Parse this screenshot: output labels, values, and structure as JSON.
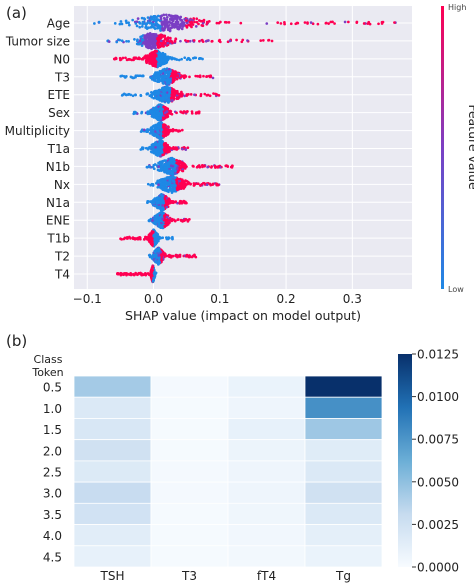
{
  "chart_data": [
    {
      "panel_label": "(a)",
      "type": "scatter",
      "subtype": "shap-beeswarm",
      "xlabel": "SHAP value (impact on model output)",
      "xlim": [
        -0.12,
        0.39
      ],
      "xticks": [
        -0.1,
        0.0,
        0.1,
        0.2,
        0.3
      ],
      "xtick_labels": [
        "−0.1",
        "0.0",
        "0.1",
        "0.2",
        "0.3"
      ],
      "grid": true,
      "colorbar": {
        "label": "Feature value",
        "high": "High",
        "low": "Low",
        "colors": {
          "low": "#1e88e5",
          "mid": "#7b3fc4",
          "high": "#ff0052"
        }
      },
      "features": [
        {
          "name": "Age",
          "range": [
            -0.09,
            0.37
          ],
          "core": [
            -0.06,
            0.1
          ]
        },
        {
          "name": "Tumor size",
          "range": [
            -0.07,
            0.18
          ],
          "core": [
            -0.04,
            0.04
          ]
        },
        {
          "name": "N0",
          "range": [
            -0.06,
            0.075
          ],
          "core": [
            -0.02,
            0.03
          ]
        },
        {
          "name": "T3",
          "range": [
            -0.05,
            0.09
          ],
          "core": [
            -0.01,
            0.05
          ]
        },
        {
          "name": "ETE",
          "range": [
            -0.05,
            0.1
          ],
          "core": [
            -0.01,
            0.05
          ]
        },
        {
          "name": "Sex",
          "range": [
            -0.03,
            0.07
          ],
          "core": [
            -0.01,
            0.03
          ]
        },
        {
          "name": "Multiplicity",
          "range": [
            -0.02,
            0.045
          ],
          "core": [
            -0.01,
            0.03
          ]
        },
        {
          "name": "T1a",
          "range": [
            -0.02,
            0.055
          ],
          "core": [
            -0.01,
            0.03
          ]
        },
        {
          "name": "N1b",
          "range": [
            -0.01,
            0.12
          ],
          "core": [
            -0.005,
            0.06
          ]
        },
        {
          "name": "Nx",
          "range": [
            -0.01,
            0.1
          ],
          "core": [
            -0.005,
            0.06
          ]
        },
        {
          "name": "N1a",
          "range": [
            -0.01,
            0.05
          ],
          "core": [
            -0.005,
            0.03
          ]
        },
        {
          "name": "ENE",
          "range": [
            -0.01,
            0.055
          ],
          "core": [
            -0.005,
            0.03
          ]
        },
        {
          "name": "T1b",
          "range": [
            -0.05,
            0.03
          ],
          "core": [
            -0.01,
            0.01
          ]
        },
        {
          "name": "T2",
          "range": [
            -0.01,
            0.065
          ],
          "core": [
            -0.005,
            0.02
          ]
        },
        {
          "name": "T4",
          "range": [
            -0.055,
            0.005
          ],
          "core": [
            -0.005,
            0.003
          ]
        }
      ]
    },
    {
      "panel_label": "(b)",
      "type": "heatmap",
      "ylabel": "Class Token",
      "rows": [
        "0.5",
        "1.0",
        "1.5",
        "2.0",
        "2.5",
        "3.0",
        "3.5",
        "4.0",
        "4.5"
      ],
      "columns": [
        "TSH",
        "T3",
        "fT4",
        "Tg"
      ],
      "values": [
        [
          0.0043,
          0.0002,
          0.0008,
          0.0125
        ],
        [
          0.0018,
          0.0001,
          0.0006,
          0.0078
        ],
        [
          0.002,
          0.0001,
          0.001,
          0.0045
        ],
        [
          0.0025,
          0.0001,
          0.0007,
          0.0015
        ],
        [
          0.0017,
          0.0002,
          0.0006,
          0.0018
        ],
        [
          0.003,
          0.0002,
          0.0006,
          0.0025
        ],
        [
          0.0024,
          0.0001,
          0.0005,
          0.0018
        ],
        [
          0.0014,
          0.0001,
          0.0004,
          0.0012
        ],
        [
          0.001,
          0.0001,
          0.0003,
          0.0008
        ]
      ],
      "vmin": 0.0,
      "vmax": 0.0125,
      "colorbar_ticks": [
        "0.0125",
        "0.0100",
        "0.0075",
        "0.0050",
        "0.0025",
        "0.0000"
      ],
      "colorbar_values": [
        0.0125,
        0.01,
        0.0075,
        0.005,
        0.0025,
        0.0
      ]
    }
  ]
}
